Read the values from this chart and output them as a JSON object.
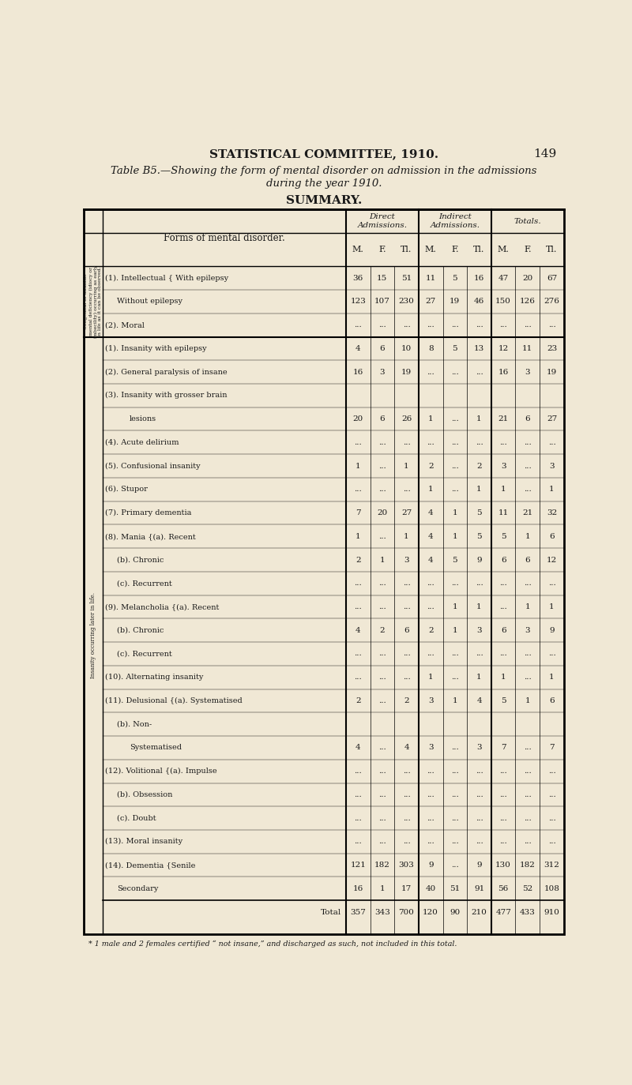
{
  "page_header": "STATISTICAL COMMITTEE, 1910.",
  "page_number": "149",
  "table_title_line1": "Table B5.—Showing the form of mental disorder on admission in the admissions",
  "table_title_line2": "during the year 1910.",
  "summary_label": "SUMMARY.",
  "bg_color": "#f0e8d5",
  "text_color": "#1a1a1a",
  "left_sidebar_top": "Congenital or infantile\nmental deficiency (idiocy or\nimbecility) occurring as early\nin life as it can be observed.",
  "left_sidebar_bottom": "Insanity occurring later in life.",
  "rows": [
    {
      "label": "(1). Intellectual { With epilepsy",
      "indent": 0,
      "vals": [
        "36",
        "15",
        "51",
        "11",
        "5",
        "16",
        "47",
        "20",
        "67"
      ]
    },
    {
      "label": "Without epilepsy",
      "indent": 1,
      "vals": [
        "123",
        "107",
        "230",
        "27",
        "19",
        "46",
        "150",
        "126",
        "276"
      ]
    },
    {
      "label": "(2). Moral",
      "indent": 0,
      "vals": [
        "...",
        "...",
        "...",
        "...",
        "...",
        "...",
        "...",
        "...",
        "..."
      ]
    },
    {
      "label": "(1). Insanity with epilepsy",
      "indent": 0,
      "vals": [
        "4",
        "6",
        "10",
        "8",
        "5",
        "13",
        "12",
        "11",
        "23"
      ]
    },
    {
      "label": "(2). General paralysis of insane",
      "indent": 0,
      "vals": [
        "16",
        "3",
        "19",
        "...",
        "...",
        "...",
        "16",
        "3",
        "19"
      ]
    },
    {
      "label": "(3). Insanity with grosser brain",
      "indent": 0,
      "vals": [
        "",
        "",
        "",
        "",
        "",
        "",
        "",
        "",
        ""
      ]
    },
    {
      "label": "lesions",
      "indent": 2,
      "vals": [
        "20",
        "6",
        "26",
        "1",
        "...",
        "1",
        "21",
        "6",
        "27"
      ]
    },
    {
      "label": "(4). Acute delirium",
      "indent": 0,
      "vals": [
        "...",
        "...",
        "...",
        "...",
        "...",
        "...",
        "...",
        "...",
        "..."
      ]
    },
    {
      "label": "(5). Confusional insanity",
      "indent": 0,
      "vals": [
        "1",
        "...",
        "1",
        "2",
        "...",
        "2",
        "3",
        "...",
        "3"
      ]
    },
    {
      "label": "(6). Stupor",
      "indent": 0,
      "vals": [
        "...",
        "...",
        "...",
        "1",
        "...",
        "1",
        "1",
        "...",
        "1"
      ]
    },
    {
      "label": "(7). Primary dementia",
      "indent": 0,
      "vals": [
        "7",
        "20",
        "27",
        "4",
        "1",
        "5",
        "11",
        "21",
        "32"
      ]
    },
    {
      "label": "(8). Mania {(a). Recent",
      "indent": 0,
      "vals": [
        "1",
        "...",
        "1",
        "4",
        "1",
        "5",
        "5",
        "1",
        "6"
      ]
    },
    {
      "label": "(b). Chronic",
      "indent": 1,
      "vals": [
        "2",
        "1",
        "3",
        "4",
        "5",
        "9",
        "6",
        "6",
        "12"
      ]
    },
    {
      "label": "(c). Recurrent",
      "indent": 1,
      "vals": [
        "...",
        "...",
        "...",
        "...",
        "...",
        "...",
        "...",
        "...",
        "..."
      ]
    },
    {
      "label": "(9). Melancholia {(a). Recent",
      "indent": 0,
      "vals": [
        "...",
        "...",
        "...",
        "...",
        "1",
        "1",
        "...",
        "1",
        "1"
      ]
    },
    {
      "label": "(b). Chronic",
      "indent": 1,
      "vals": [
        "4",
        "2",
        "6",
        "2",
        "1",
        "3",
        "6",
        "3",
        "9"
      ]
    },
    {
      "label": "(c). Recurrent",
      "indent": 1,
      "vals": [
        "...",
        "...",
        "...",
        "...",
        "...",
        "...",
        "...",
        "...",
        "..."
      ]
    },
    {
      "label": "(10). Alternating insanity",
      "indent": 0,
      "vals": [
        "...",
        "...",
        "...",
        "1",
        "...",
        "1",
        "1",
        "...",
        "1"
      ]
    },
    {
      "label": "(11). Delusional {(a). Systematised",
      "indent": 0,
      "vals": [
        "2",
        "...",
        "2",
        "3",
        "1",
        "4",
        "5",
        "1",
        "6"
      ]
    },
    {
      "label": "(b). Non-",
      "indent": 1,
      "vals": [
        "",
        "",
        "",
        "",
        "",
        "",
        "",
        "",
        ""
      ]
    },
    {
      "label": "Systematised",
      "indent": 2,
      "vals": [
        "4",
        "...",
        "4",
        "3",
        "...",
        "3",
        "7",
        "...",
        "7"
      ]
    },
    {
      "label": "(12). Volitional {(a). Impulse",
      "indent": 0,
      "vals": [
        "...",
        "...",
        "...",
        "...",
        "...",
        "...",
        "...",
        "...",
        "..."
      ]
    },
    {
      "label": "(b). Obsession",
      "indent": 1,
      "vals": [
        "...",
        "...",
        "...",
        "...",
        "...",
        "...",
        "...",
        "...",
        "..."
      ]
    },
    {
      "label": "(c). Doubt",
      "indent": 1,
      "vals": [
        "...",
        "...",
        "...",
        "...",
        "...",
        "...",
        "...",
        "...",
        "..."
      ]
    },
    {
      "label": "(13). Moral insanity",
      "indent": 0,
      "vals": [
        "...",
        "...",
        "...",
        "...",
        "...",
        "...",
        "...",
        "...",
        "..."
      ]
    },
    {
      "label": "(14). Dementia {Senile",
      "indent": 0,
      "vals": [
        "121",
        "182",
        "303",
        "9",
        "...",
        "9",
        "130",
        "182",
        "312"
      ]
    },
    {
      "label": "Secondary",
      "indent": 1,
      "vals": [
        "16",
        "1",
        "17",
        "40",
        "51",
        "91",
        "56",
        "52",
        "108"
      ]
    },
    {
      "label": "Total",
      "indent": 0,
      "vals": [
        "357",
        "343",
        "700",
        "120",
        "90",
        "210",
        "477",
        "433",
        "910"
      ],
      "is_total": true
    }
  ],
  "footnote": "* 1 male and 2 females certified “ not insane,” and discharged as such, not included in this total."
}
